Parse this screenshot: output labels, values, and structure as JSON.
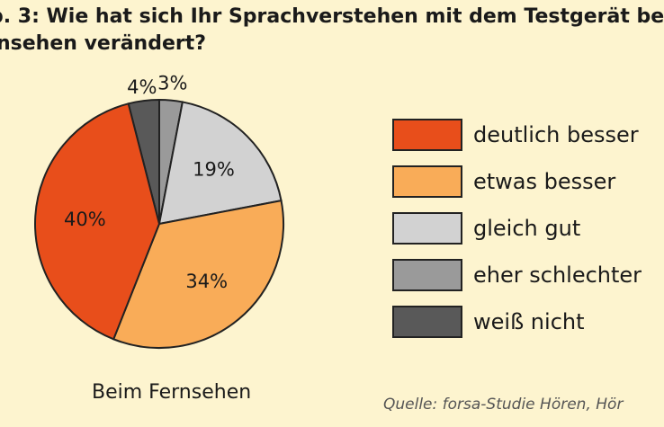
{
  "header": {
    "title_line1": "b. 3: Wie hat sich Ihr Sprachverstehen mit dem Testgerät be",
    "title_line2": "nsehen verändert?"
  },
  "footer": {
    "subtitle": "Beim Fernsehen",
    "source": "Quelle: forsa-Studie Hören, Hör"
  },
  "chart_data": {
    "type": "pie",
    "title": "b. 3: Wie hat sich Ihr Sprachverstehen mit dem Testgerät be nsehen verändert?",
    "subtitle": "Beim Fernsehen",
    "legend_position": "right",
    "categories": [
      "deutlich besser",
      "etwas besser",
      "gleich gut",
      "eher schlechter",
      "weiß nicht"
    ],
    "values": [
      40,
      34,
      19,
      3,
      4
    ],
    "labels": [
      "40%",
      "34%",
      "19%",
      "3%",
      "4%"
    ],
    "colors": [
      "#e84e1b",
      "#f9ac58",
      "#d2d2d2",
      "#9a9a9a",
      "#595959"
    ]
  }
}
